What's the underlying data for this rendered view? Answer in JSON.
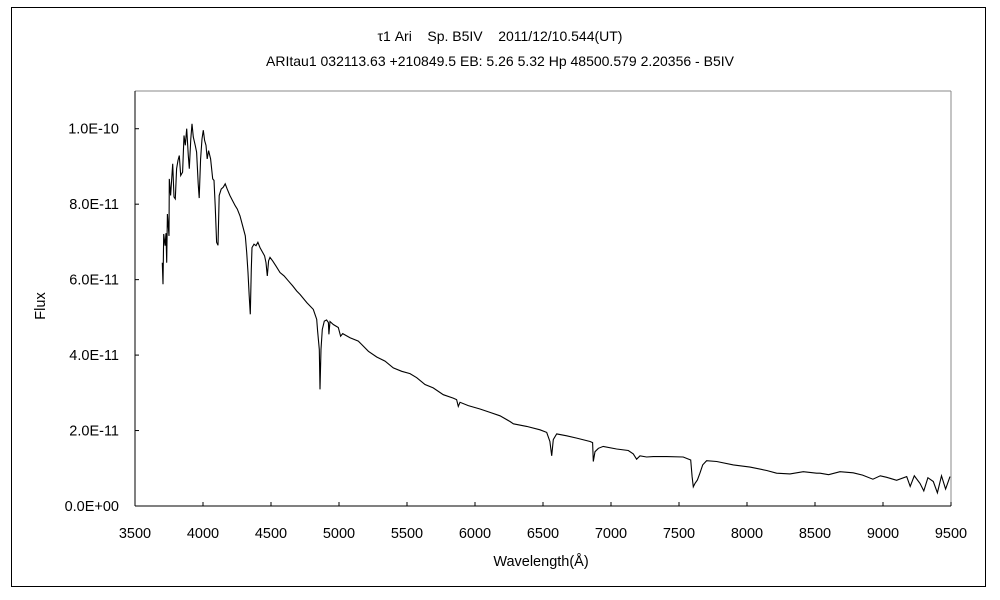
{
  "chart_data": {
    "type": "line",
    "title": "τ1 Ari    Sp. B5IV    2011/12/10.544(UT)",
    "subtitle": "ARItau1 032113.63 +210849.5 EB: 5.26 5.32 Hp 48500.579 2.20356 - B5IV",
    "xlabel": "Wavelength(Å)",
    "ylabel": "Flux",
    "xlim": [
      3500,
      9500
    ],
    "ylim": [
      0,
      1.1e-10
    ],
    "xticks": [
      "3500",
      "4000",
      "4500",
      "5000",
      "5500",
      "6000",
      "6500",
      "7000",
      "7500",
      "8000",
      "8500",
      "9000",
      "9500"
    ],
    "xtick_values": [
      3500,
      4000,
      4500,
      5000,
      5500,
      6000,
      6500,
      7000,
      7500,
      8000,
      8500,
      9000,
      9500
    ],
    "yticks": [
      "0.0E+00",
      "2.0E-11",
      "4.0E-11",
      "6.0E-11",
      "8.0E-11",
      "1.0E-10"
    ],
    "ytick_values": [
      0,
      2e-11,
      4e-11,
      6e-11,
      8e-11,
      1e-10
    ],
    "grid": false,
    "line_color": "#000000",
    "series": [
      {
        "x": [
          3701,
          3706,
          3711,
          3721,
          3728,
          3733,
          3738,
          3750,
          3752,
          3762,
          3777,
          3787,
          3796,
          3806,
          3816,
          3826,
          3836,
          3850,
          3860,
          3870,
          3880,
          3892,
          3899,
          3910,
          3919,
          3929,
          3943,
          3953,
          3965,
          3972,
          3982,
          3993,
          4002,
          4012,
          4022,
          4031,
          4041,
          4056,
          4071,
          4081,
          4090,
          4100,
          4110,
          4119,
          4134,
          4149,
          4163,
          4178,
          4198,
          4218,
          4237,
          4252,
          4272,
          4291,
          4311,
          4321,
          4331,
          4340,
          4348,
          4355,
          4360,
          4375,
          4390,
          4404,
          4419,
          4439,
          4453,
          4463,
          4473,
          4482,
          4493,
          4512,
          4537,
          4566,
          4596,
          4627,
          4660,
          4689,
          4713,
          4763,
          4811,
          4836,
          4843,
          4855,
          4860,
          4868,
          4877,
          4892,
          4909,
          4922,
          4926,
          4934,
          4958,
          4995,
          5012,
          5027,
          5081,
          5142,
          5167,
          5216,
          5277,
          5338,
          5399,
          5461,
          5522,
          5571,
          5632,
          5693,
          5767,
          5840,
          5865,
          5877,
          5890,
          5951,
          6037,
          6110,
          6184,
          6257,
          6282,
          6380,
          6478,
          6527,
          6551,
          6564,
          6576,
          6601,
          6674,
          6748,
          6846,
          6865,
          6870,
          6882,
          6907,
          6943,
          7041,
          7127,
          7164,
          7188,
          7213,
          7262,
          7311,
          7409,
          7531,
          7586,
          7596,
          7605,
          7618,
          7635,
          7654,
          7674,
          7703,
          7777,
          7900,
          8022,
          8145,
          8218,
          8316,
          8414,
          8512,
          8537,
          8600,
          8684,
          8781,
          8850,
          8926,
          8980,
          9027,
          9100,
          9174,
          9200,
          9230,
          9272,
          9300,
          9330,
          9370,
          9400,
          9430,
          9460,
          9493
        ],
        "y": [
          6.45e-11,
          5.88e-11,
          7.21e-11,
          6.9e-11,
          7.23e-11,
          6.45e-11,
          7.74e-11,
          7.16e-11,
          8.67e-11,
          8.23e-11,
          9.07e-11,
          8.19e-11,
          8.14e-11,
          8.94e-11,
          9.16e-11,
          9.29e-11,
          8.76e-11,
          8.85e-11,
          9.82e-11,
          9.56e-11,
          1e-10,
          9.29e-11,
          8.94e-11,
          9.73e-11,
          1.013e-10,
          9.78e-11,
          9.56e-11,
          9.38e-11,
          8.54e-11,
          8.16e-11,
          9.2e-11,
          9.73e-11,
          9.96e-11,
          9.69e-11,
          9.56e-11,
          9.2e-11,
          9.42e-11,
          9.2e-11,
          8.67e-11,
          8.63e-11,
          7.96e-11,
          6.99e-11,
          6.91e-11,
          8.23e-11,
          8.4e-11,
          8.45e-11,
          8.54e-11,
          8.4e-11,
          8.23e-11,
          8.09e-11,
          7.96e-11,
          7.87e-11,
          7.69e-11,
          7.43e-11,
          7.16e-11,
          6.72e-11,
          6.19e-11,
          5.57e-11,
          5.08e-11,
          6.28e-11,
          6.85e-11,
          6.94e-11,
          6.9e-11,
          6.99e-11,
          6.85e-11,
          6.72e-11,
          6.63e-11,
          6.45e-11,
          6.1e-11,
          6.5e-11,
          6.59e-11,
          6.5e-11,
          6.36e-11,
          6.19e-11,
          6.1e-11,
          5.97e-11,
          5.83e-11,
          5.7e-11,
          5.61e-11,
          5.39e-11,
          5.21e-11,
          4.95e-11,
          4.64e-11,
          4.15e-11,
          3.09e-11,
          4.15e-11,
          4.68e-11,
          4.9e-11,
          4.93e-11,
          4.86e-11,
          4.55e-11,
          4.89e-11,
          4.81e-11,
          4.73e-11,
          4.5e-11,
          4.57e-11,
          4.46e-11,
          4.37e-11,
          4.28e-11,
          4.1e-11,
          3.95e-11,
          3.84e-11,
          3.66e-11,
          3.57e-11,
          3.51e-11,
          3.4e-11,
          3.22e-11,
          3.13e-11,
          2.95e-11,
          2.86e-11,
          2.82e-11,
          2.64e-11,
          2.75e-11,
          2.66e-11,
          2.57e-11,
          2.48e-11,
          2.39e-11,
          2.24e-11,
          2.18e-11,
          2.11e-11,
          2.02e-11,
          1.95e-11,
          1.71e-11,
          1.33e-11,
          1.76e-11,
          1.91e-11,
          1.86e-11,
          1.8e-11,
          1.71e-11,
          1.68e-11,
          1.18e-11,
          1.44e-11,
          1.53e-11,
          1.58e-11,
          1.51e-11,
          1.47e-11,
          1.38e-11,
          1.24e-11,
          1.33e-11,
          1.3e-11,
          1.31e-11,
          1.31e-11,
          1.3e-11,
          1.22e-11,
          7.8e-12,
          5.1e-12,
          6e-12,
          6.9e-12,
          8.7e-12,
          1.09e-11,
          1.2e-11,
          1.18e-11,
          1.09e-11,
          1.03e-11,
          9.4e-12,
          8.7e-12,
          8.5e-12,
          9.1e-12,
          8.7e-12,
          8.7e-12,
          8.3e-12,
          9.1e-12,
          8.8e-12,
          8.2e-12,
          7.1e-12,
          8e-12,
          7.6e-12,
          6.8e-12,
          7.8e-12,
          5.2e-12,
          8e-12,
          6e-12,
          4e-12,
          7.5e-12,
          6.5e-12,
          3.5e-12,
          8e-12,
          4.5e-12,
          7.8e-12
        ]
      }
    ]
  }
}
